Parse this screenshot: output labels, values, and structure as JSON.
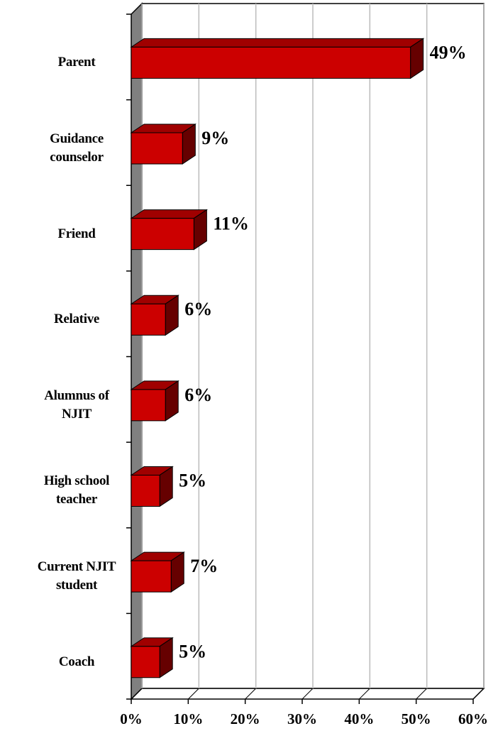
{
  "chart_data": {
    "type": "bar3d",
    "categories": [
      "Parent",
      "Guidance counselor",
      "Friend",
      "Relative",
      "Alumnus of NJIT",
      "High school teacher",
      "Current NJIT student",
      "Coach"
    ],
    "values": [
      49,
      9,
      11,
      6,
      6,
      5,
      7,
      5
    ],
    "value_labels": [
      "49%",
      "9%",
      "11%",
      "6%",
      "6%",
      "5%",
      "7%",
      "5%"
    ],
    "color": "#cc0000",
    "xlim": [
      0,
      60
    ],
    "xticks": [
      {
        "value": 0,
        "label": "0%"
      },
      {
        "value": 10,
        "label": "10%"
      },
      {
        "value": 20,
        "label": "20%"
      },
      {
        "value": 30,
        "label": "30%"
      },
      {
        "value": 40,
        "label": "40%"
      },
      {
        "value": 50,
        "label": "50%"
      },
      {
        "value": 60,
        "label": "60%"
      }
    ],
    "grid": true
  }
}
